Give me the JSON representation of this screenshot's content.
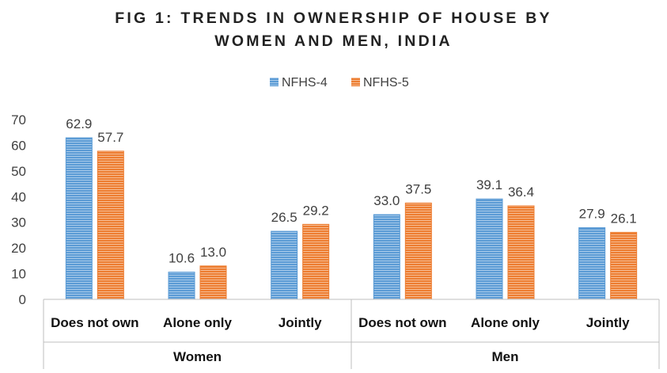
{
  "chart_data": {
    "type": "bar",
    "title_line1": "FIG 1: TRENDS IN OWNERSHIP OF HOUSE BY",
    "title_line2": "WOMEN AND MEN, INDIA",
    "groups": [
      {
        "name": "Women",
        "categories": [
          "Does not own",
          "Alone only",
          "Jointly"
        ]
      },
      {
        "name": "Men",
        "categories": [
          "Does not own",
          "Alone only",
          "Jointly"
        ]
      }
    ],
    "categories": [
      "Does not own",
      "Alone only",
      "Jointly",
      "Does not own",
      "Alone only",
      "Jointly"
    ],
    "series": [
      {
        "name": "NFHS-4",
        "values": [
          62.9,
          10.6,
          26.5,
          33.0,
          39.1,
          27.9
        ],
        "labels": [
          "62.9",
          "10.6",
          "26.5",
          "33.0",
          "39.1",
          "27.9"
        ],
        "color": "#5B9BD5"
      },
      {
        "name": "NFHS-5",
        "values": [
          57.7,
          13.0,
          29.2,
          37.5,
          36.4,
          26.1
        ],
        "labels": [
          "57.7",
          "13.0",
          "29.2",
          "37.5",
          "36.4",
          "26.1"
        ],
        "color": "#ED7D31"
      }
    ],
    "ylim": [
      0,
      70
    ],
    "yticks": [
      "0",
      "10",
      "20",
      "30",
      "40",
      "50",
      "60",
      "70"
    ],
    "legend_position": "top",
    "grid": false,
    "xlabel": "",
    "ylabel": ""
  }
}
